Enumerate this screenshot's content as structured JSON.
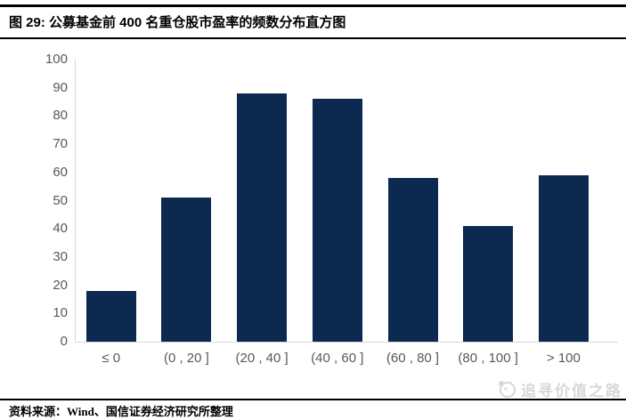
{
  "header": {
    "title": "图 29: 公募基金前 400 名重仓股市盈率的频数分布直方图"
  },
  "chart_data": {
    "type": "bar",
    "title": "公募基金前 400 名重仓股市盈率的频数分布直方图",
    "categories": [
      "≤ 0",
      "(0 , 20 ]",
      "(20 , 40 ]",
      "(40 , 60 ]",
      "(60 , 80 ]",
      "(80 , 100 ]",
      "> 100"
    ],
    "values": [
      18,
      51,
      88,
      86,
      58,
      41,
      59
    ],
    "xlabel": "",
    "ylabel": "",
    "ylim": [
      0,
      100
    ],
    "y_ticks": [
      0,
      10,
      20,
      30,
      40,
      50,
      60,
      70,
      80,
      90,
      100
    ],
    "grid": false,
    "legend": false,
    "bar_color": "#0c2950",
    "axis_color": "#d9d9d9",
    "tick_label_color": "#595959"
  },
  "footer": {
    "source": "资料来源：Wind、国信证券经济研究所整理"
  },
  "watermark": {
    "text": "追寻价值之路"
  }
}
